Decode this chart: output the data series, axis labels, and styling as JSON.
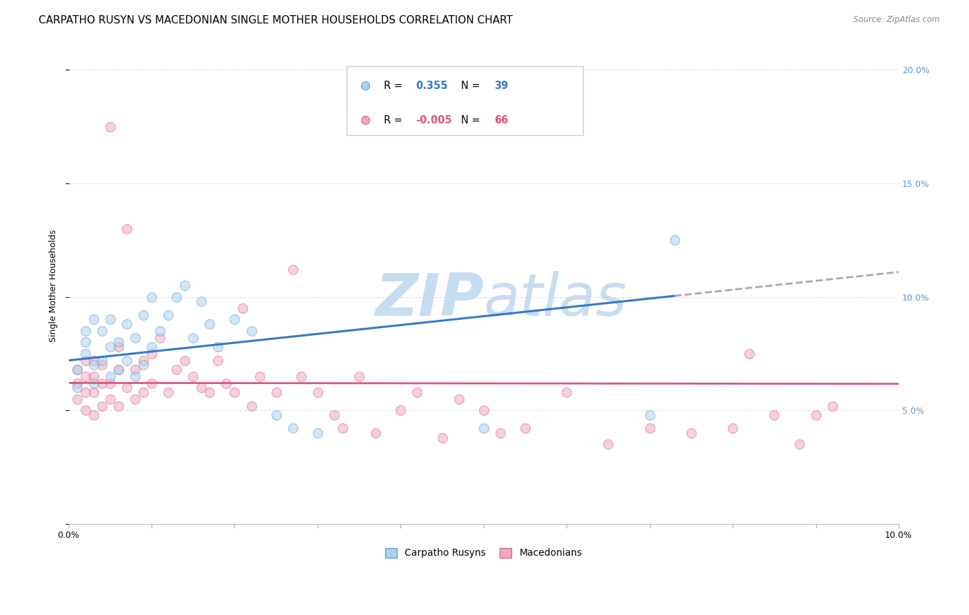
{
  "title": "CARPATHO RUSYN VS MACEDONIAN SINGLE MOTHER HOUSEHOLDS CORRELATION CHART",
  "source": "Source: ZipAtlas.com",
  "ylabel": "Single Mother Households",
  "xlim": [
    0.0,
    0.1
  ],
  "ylim": [
    0.0,
    0.21
  ],
  "yticks": [
    0.0,
    0.05,
    0.1,
    0.15,
    0.2
  ],
  "ytick_labels": [
    "",
    "5.0%",
    "10.0%",
    "15.0%",
    "20.0%"
  ],
  "xticks": [
    0.0,
    0.01,
    0.02,
    0.03,
    0.04,
    0.05,
    0.06,
    0.07,
    0.08,
    0.09,
    0.1
  ],
  "xtick_labels": [
    "0.0%",
    "",
    "",
    "",
    "",
    "",
    "",
    "",
    "",
    "",
    "10.0%"
  ],
  "carpatho_color": "#A8D4F0",
  "macedonian_color": "#F4A8C0",
  "carpatho_edge": "#6699CC",
  "macedonian_edge": "#CC6688",
  "blue_line_color": "#3377CC",
  "pink_line_color": "#DD5577",
  "dashed_line_color": "#AAAAAA",
  "grid_color": "#DDDDDD",
  "right_axis_color": "#5599CC",
  "carpatho_R": 0.355,
  "macedonian_R": -0.005,
  "carpatho_x": [
    0.001,
    0.001,
    0.002,
    0.002,
    0.002,
    0.003,
    0.003,
    0.003,
    0.004,
    0.004,
    0.005,
    0.005,
    0.005,
    0.006,
    0.006,
    0.007,
    0.007,
    0.008,
    0.008,
    0.009,
    0.009,
    0.01,
    0.01,
    0.011,
    0.012,
    0.013,
    0.014,
    0.015,
    0.016,
    0.017,
    0.018,
    0.02,
    0.022,
    0.025,
    0.027,
    0.03,
    0.05,
    0.07,
    0.073
  ],
  "carpatho_y": [
    0.06,
    0.068,
    0.075,
    0.08,
    0.085,
    0.062,
    0.07,
    0.09,
    0.072,
    0.085,
    0.065,
    0.078,
    0.09,
    0.068,
    0.08,
    0.072,
    0.088,
    0.065,
    0.082,
    0.07,
    0.092,
    0.078,
    0.1,
    0.085,
    0.092,
    0.1,
    0.105,
    0.082,
    0.098,
    0.088,
    0.078,
    0.09,
    0.085,
    0.048,
    0.042,
    0.04,
    0.042,
    0.048,
    0.125
  ],
  "macedonian_x": [
    0.001,
    0.001,
    0.001,
    0.002,
    0.002,
    0.002,
    0.002,
    0.003,
    0.003,
    0.003,
    0.003,
    0.004,
    0.004,
    0.004,
    0.005,
    0.005,
    0.005,
    0.006,
    0.006,
    0.006,
    0.007,
    0.007,
    0.008,
    0.008,
    0.009,
    0.009,
    0.01,
    0.01,
    0.011,
    0.012,
    0.013,
    0.014,
    0.015,
    0.016,
    0.017,
    0.018,
    0.019,
    0.02,
    0.021,
    0.022,
    0.023,
    0.025,
    0.027,
    0.028,
    0.03,
    0.032,
    0.033,
    0.035,
    0.037,
    0.04,
    0.042,
    0.045,
    0.047,
    0.05,
    0.052,
    0.055,
    0.06,
    0.065,
    0.07,
    0.075,
    0.08,
    0.082,
    0.085,
    0.088,
    0.09,
    0.092
  ],
  "macedonian_y": [
    0.055,
    0.062,
    0.068,
    0.05,
    0.058,
    0.065,
    0.072,
    0.048,
    0.058,
    0.065,
    0.072,
    0.052,
    0.062,
    0.07,
    0.055,
    0.062,
    0.175,
    0.052,
    0.068,
    0.078,
    0.06,
    0.13,
    0.055,
    0.068,
    0.058,
    0.072,
    0.062,
    0.075,
    0.082,
    0.058,
    0.068,
    0.072,
    0.065,
    0.06,
    0.058,
    0.072,
    0.062,
    0.058,
    0.095,
    0.052,
    0.065,
    0.058,
    0.112,
    0.065,
    0.058,
    0.048,
    0.042,
    0.065,
    0.04,
    0.05,
    0.058,
    0.038,
    0.055,
    0.05,
    0.04,
    0.042,
    0.058,
    0.035,
    0.042,
    0.04,
    0.042,
    0.075,
    0.048,
    0.035,
    0.048,
    0.052
  ],
  "background_color": "#FFFFFF",
  "watermark_color": "#C8DCEF",
  "title_fontsize": 11,
  "axis_label_fontsize": 9,
  "tick_fontsize": 9,
  "legend_fontsize": 10.5,
  "marker_size": 100,
  "marker_alpha": 0.55,
  "legend_R_color_blue": "#3377CC",
  "legend_R_color_pink": "#DD5577",
  "legend_N_color_blue": "#3377CC",
  "legend_N_color_pink": "#DD5577",
  "legend_val_color_blue": "#3377CC",
  "legend_val_color_pink": "#DD5577"
}
